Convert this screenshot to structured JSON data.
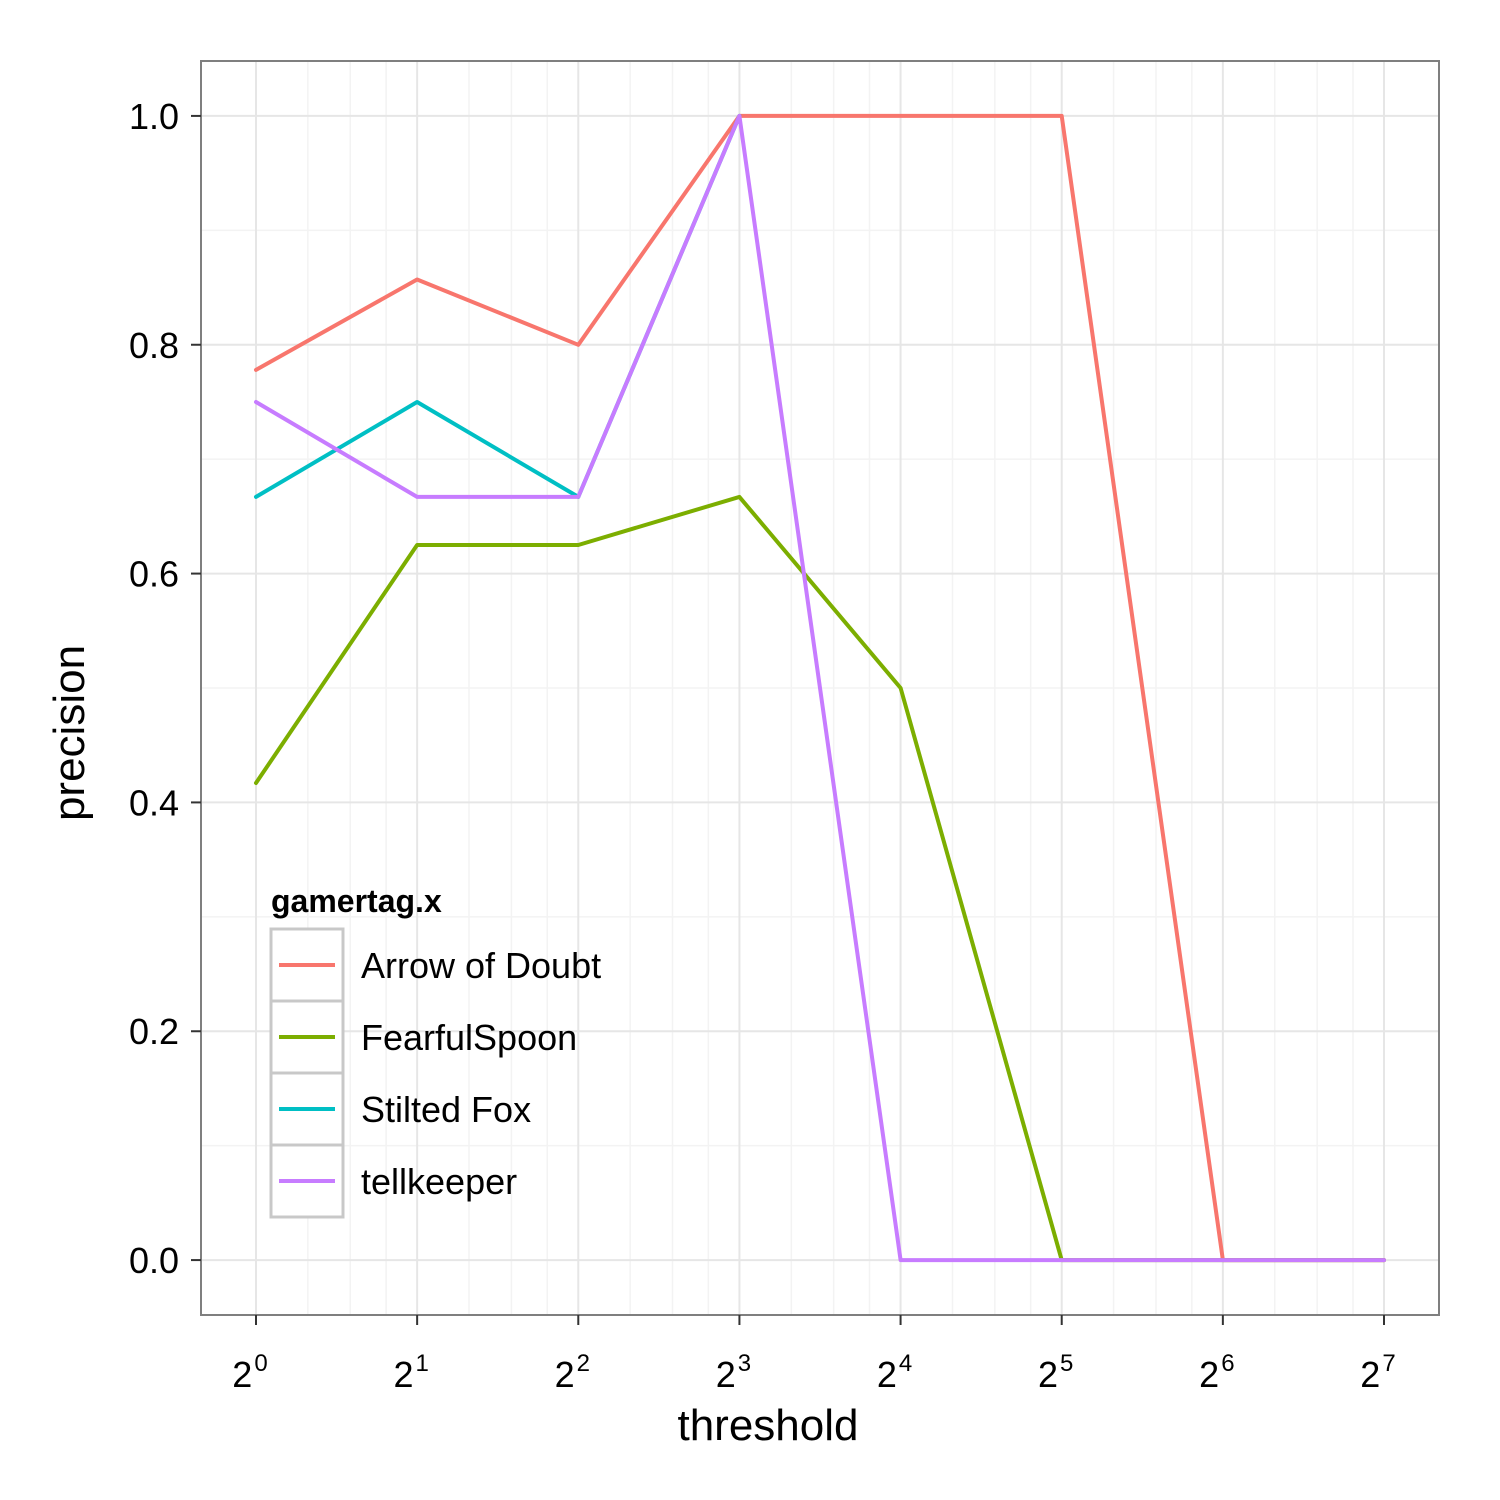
{
  "chart_data": {
    "type": "line",
    "title": "",
    "xlabel": "threshold",
    "ylabel": "precision",
    "x_scale": "log2",
    "x": [
      1,
      2,
      4,
      8,
      16,
      32,
      64,
      128
    ],
    "x_tick_base": "2",
    "x_tick_exponents": [
      "0",
      "1",
      "2",
      "3",
      "4",
      "5",
      "6",
      "7"
    ],
    "y_ticks": [
      "0.0",
      "0.2",
      "0.4",
      "0.6",
      "0.8",
      "1.0"
    ],
    "ylim": [
      -0.048,
      1.048
    ],
    "grid": true,
    "legend": {
      "title": "gamertag.x",
      "placement": "bottom-left"
    },
    "series": [
      {
        "name": "Arrow of Doubt",
        "color": "#F8766D",
        "x": [
          1,
          2,
          4,
          8,
          16,
          32,
          64,
          128
        ],
        "values": [
          0.778,
          0.857,
          0.8,
          1.0,
          1.0,
          1.0,
          0.0,
          0.0
        ]
      },
      {
        "name": "FearfulSpoon",
        "color": "#7CAE00",
        "x": [
          1,
          2,
          4,
          8,
          16,
          32,
          64,
          128
        ],
        "values": [
          0.417,
          0.625,
          0.625,
          0.667,
          0.5,
          0.0,
          0.0,
          0.0
        ]
      },
      {
        "name": "Stilted Fox",
        "color": "#00BFC4",
        "x": [
          1,
          2,
          4,
          8
        ],
        "values": [
          0.667,
          0.75,
          0.667,
          1.0
        ]
      },
      {
        "name": "tellkeeper",
        "color": "#C77CFF",
        "x": [
          1,
          2,
          4,
          8,
          16,
          32,
          64,
          128
        ],
        "values": [
          0.75,
          0.667,
          0.667,
          1.0,
          0.0,
          0.0,
          0.0,
          0.0
        ]
      }
    ]
  }
}
